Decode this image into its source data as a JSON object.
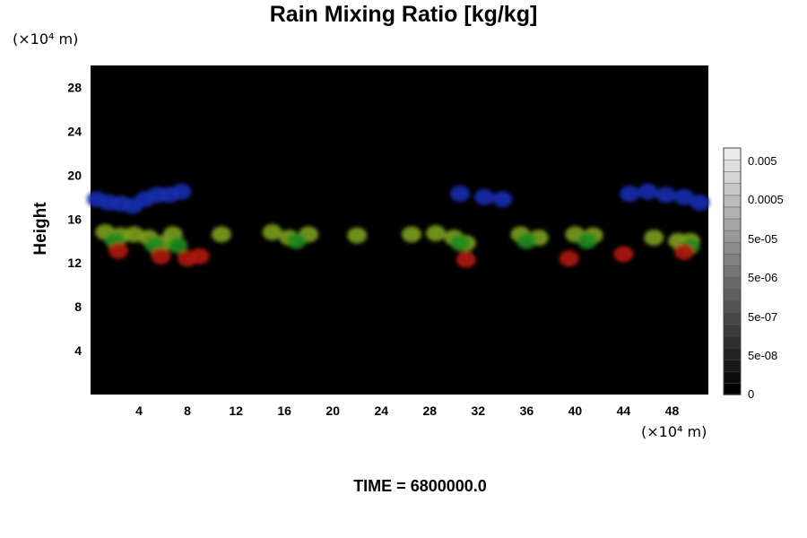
{
  "chart_data": {
    "type": "heatmap",
    "title": "Rain Mixing Ratio [kg/kg]",
    "ylabel": "Height",
    "y_unit_label": "(×10⁴ m)",
    "x_unit_label": "(×10⁴ m)",
    "x_ticks": [
      "4",
      "8",
      "12",
      "16",
      "20",
      "24",
      "28",
      "32",
      "36",
      "40",
      "44",
      "48"
    ],
    "y_ticks": [
      "4",
      "8",
      "12",
      "16",
      "20",
      "24",
      "28"
    ],
    "xlim": [
      0,
      51
    ],
    "ylim": [
      0,
      30
    ],
    "colorbar": {
      "ticks": [
        "0.005",
        "0.0005",
        "5e-05",
        "5e-06",
        "5e-07",
        "5e-08",
        "0"
      ],
      "levels": 21
    },
    "background_color": "#000000",
    "regions": [
      {
        "color": "#1a2fb0",
        "label": "blue",
        "blobs": [
          [
            0.5,
            17.8
          ],
          [
            1.5,
            17.5
          ],
          [
            2.5,
            17.4
          ],
          [
            3.5,
            17.2
          ],
          [
            4.5,
            17.8
          ],
          [
            5.5,
            18.2
          ],
          [
            6.5,
            18.2
          ],
          [
            7.5,
            18.5
          ],
          [
            30.5,
            18.3
          ],
          [
            32.5,
            18.0
          ],
          [
            34.0,
            17.8
          ],
          [
            44.5,
            18.3
          ],
          [
            46.0,
            18.5
          ],
          [
            47.5,
            18.2
          ],
          [
            49.0,
            18.0
          ],
          [
            50.3,
            17.5
          ]
        ]
      },
      {
        "color": "#7aa01c",
        "label": "yellow-green",
        "blobs": [
          [
            1.2,
            14.8
          ],
          [
            2.5,
            14.5
          ],
          [
            3.6,
            14.6
          ],
          [
            4.8,
            14.3
          ],
          [
            6.0,
            13.8
          ],
          [
            6.8,
            14.6
          ],
          [
            10.8,
            14.6
          ],
          [
            15.0,
            14.8
          ],
          [
            16.4,
            14.3
          ],
          [
            18.0,
            14.6
          ],
          [
            22.0,
            14.5
          ],
          [
            26.5,
            14.6
          ],
          [
            28.5,
            14.7
          ],
          [
            30.0,
            14.3
          ],
          [
            31.0,
            13.8
          ],
          [
            35.5,
            14.6
          ],
          [
            37.0,
            14.3
          ],
          [
            40.0,
            14.6
          ],
          [
            41.5,
            14.5
          ],
          [
            46.5,
            14.3
          ],
          [
            48.5,
            14.0
          ],
          [
            49.5,
            14.0
          ]
        ]
      },
      {
        "color": "#1f8a1f",
        "label": "green",
        "blobs": [
          [
            2.0,
            14.0
          ],
          [
            5.3,
            13.6
          ],
          [
            7.2,
            13.6
          ],
          [
            17.0,
            14.0
          ],
          [
            30.5,
            13.8
          ],
          [
            36.0,
            14.0
          ],
          [
            41.0,
            14.0
          ],
          [
            49.5,
            13.5
          ]
        ]
      },
      {
        "color": "#b01a10",
        "label": "red",
        "blobs": [
          [
            2.3,
            13.1
          ],
          [
            5.8,
            12.6
          ],
          [
            8.0,
            12.4
          ],
          [
            9.0,
            12.6
          ],
          [
            31.0,
            12.3
          ],
          [
            39.5,
            12.4
          ],
          [
            44.0,
            12.8
          ],
          [
            49.0,
            13.0
          ]
        ]
      }
    ]
  },
  "footer": {
    "time_label": "TIME = 6800000.0"
  }
}
